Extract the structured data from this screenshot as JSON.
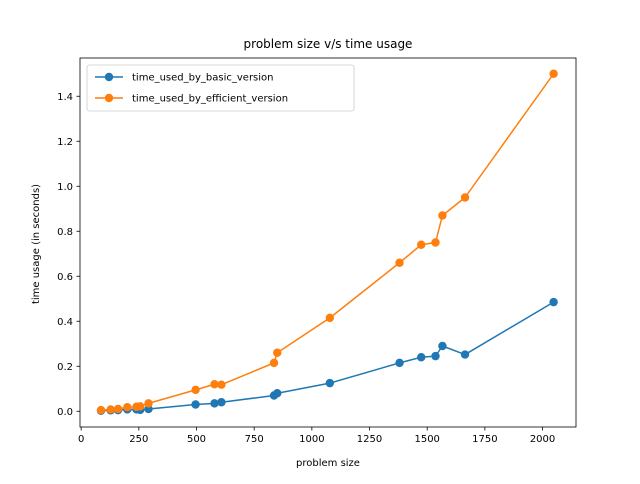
{
  "chart_data": {
    "type": "line",
    "title": "problem size v/s time usage",
    "xlabel": "problem size",
    "ylabel": "time usage (in seconds)",
    "xlim": [
      -5,
      2145
    ],
    "ylim": [
      -0.07,
      1.57
    ],
    "xticks": [
      0,
      250,
      500,
      750,
      1000,
      1250,
      1500,
      1750,
      2000
    ],
    "yticks": [
      0.0,
      0.2,
      0.4,
      0.6,
      0.8,
      1.0,
      1.2,
      1.4
    ],
    "legend_position": "top-left",
    "grid": false,
    "series": [
      {
        "name": "time_used_by_basic_version",
        "color": "#1f77b4",
        "x": [
          86,
          128,
          160,
          200,
          240,
          256,
          292,
          496,
          578,
          608,
          836,
          850,
          1078,
          1380,
          1474,
          1536,
          1566,
          1664,
          2048
        ],
        "y": [
          0.002,
          0.004,
          0.005,
          0.008,
          0.008,
          0.006,
          0.01,
          0.03,
          0.035,
          0.04,
          0.07,
          0.08,
          0.125,
          0.215,
          0.24,
          0.245,
          0.29,
          0.252,
          0.485
        ]
      },
      {
        "name": "time_used_by_efficient_version",
        "color": "#ff7f0e",
        "x": [
          86,
          128,
          160,
          200,
          240,
          256,
          292,
          496,
          578,
          608,
          836,
          850,
          1078,
          1380,
          1474,
          1536,
          1566,
          1664,
          2048
        ],
        "y": [
          0.005,
          0.008,
          0.01,
          0.018,
          0.02,
          0.022,
          0.035,
          0.095,
          0.12,
          0.118,
          0.215,
          0.26,
          0.415,
          0.66,
          0.74,
          0.75,
          0.87,
          0.95,
          1.5
        ]
      }
    ]
  }
}
